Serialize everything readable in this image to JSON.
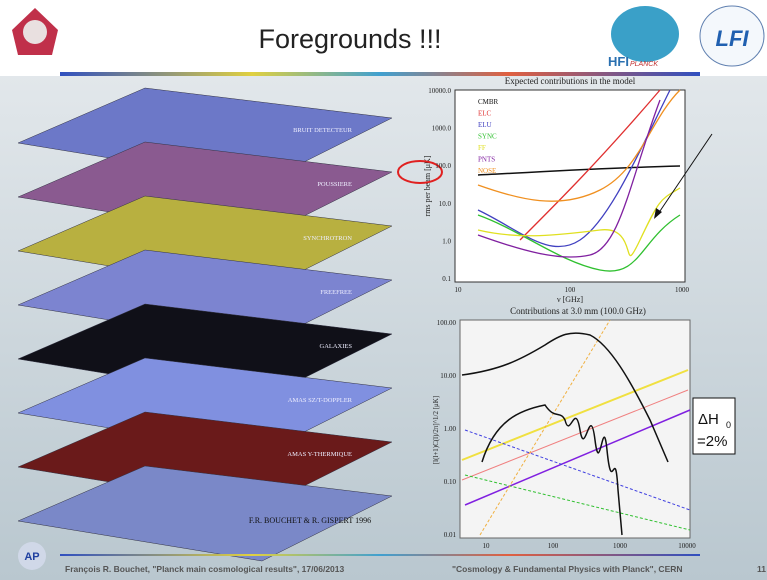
{
  "header": {
    "title": "Foregrounds !!!",
    "logos": [
      "HFI",
      "PLANCK",
      "LFI"
    ]
  },
  "stack": {
    "layers": [
      "BRUIT DETECTEUR",
      "POUSSIERE",
      "SYNCHROTRON",
      "FREEFREE",
      "GALAXIES",
      "AMAS SZ/T-DOPPLER",
      "AMAS Y-THERMIQUE"
    ],
    "credit": "F.R. BOUCHET & R. GISPERT 1996"
  },
  "plot_top": {
    "title": "Expected contributions in the model",
    "ylabel": "rms per beam [μK]",
    "xlabel": "ν [GHz]",
    "yticks": [
      "10000.0",
      "1000.0",
      "100.0",
      "10.0",
      "1.0",
      "0.1"
    ],
    "xticks": [
      "10",
      "100",
      "1000"
    ],
    "legend": [
      "CMBR",
      "ELC",
      "ELU",
      "SYNC",
      "FF",
      "PNTS",
      "NOSE"
    ]
  },
  "plot_bottom": {
    "title": "Contributions at 3.0 mm (100.0 GHz)",
    "ylabel": "[l(l+1)C(l)/2π]^1/2 [μK]",
    "yticks": [
      "100.00",
      "10.00",
      "1.00",
      "0.10",
      "0.01"
    ],
    "xticks": [
      "10",
      "100",
      "1000",
      "10000"
    ]
  },
  "annotation": {
    "symbol": "ΔH",
    "subscript": "0",
    "value": "=2%"
  },
  "footer": {
    "author": "François R. Bouchet, \"Planck main cosmological results\", 17/06/2013",
    "conference": "\"Cosmology & Fundamental Physics with Planck\", CERN",
    "page": "11",
    "logo": "AP"
  }
}
